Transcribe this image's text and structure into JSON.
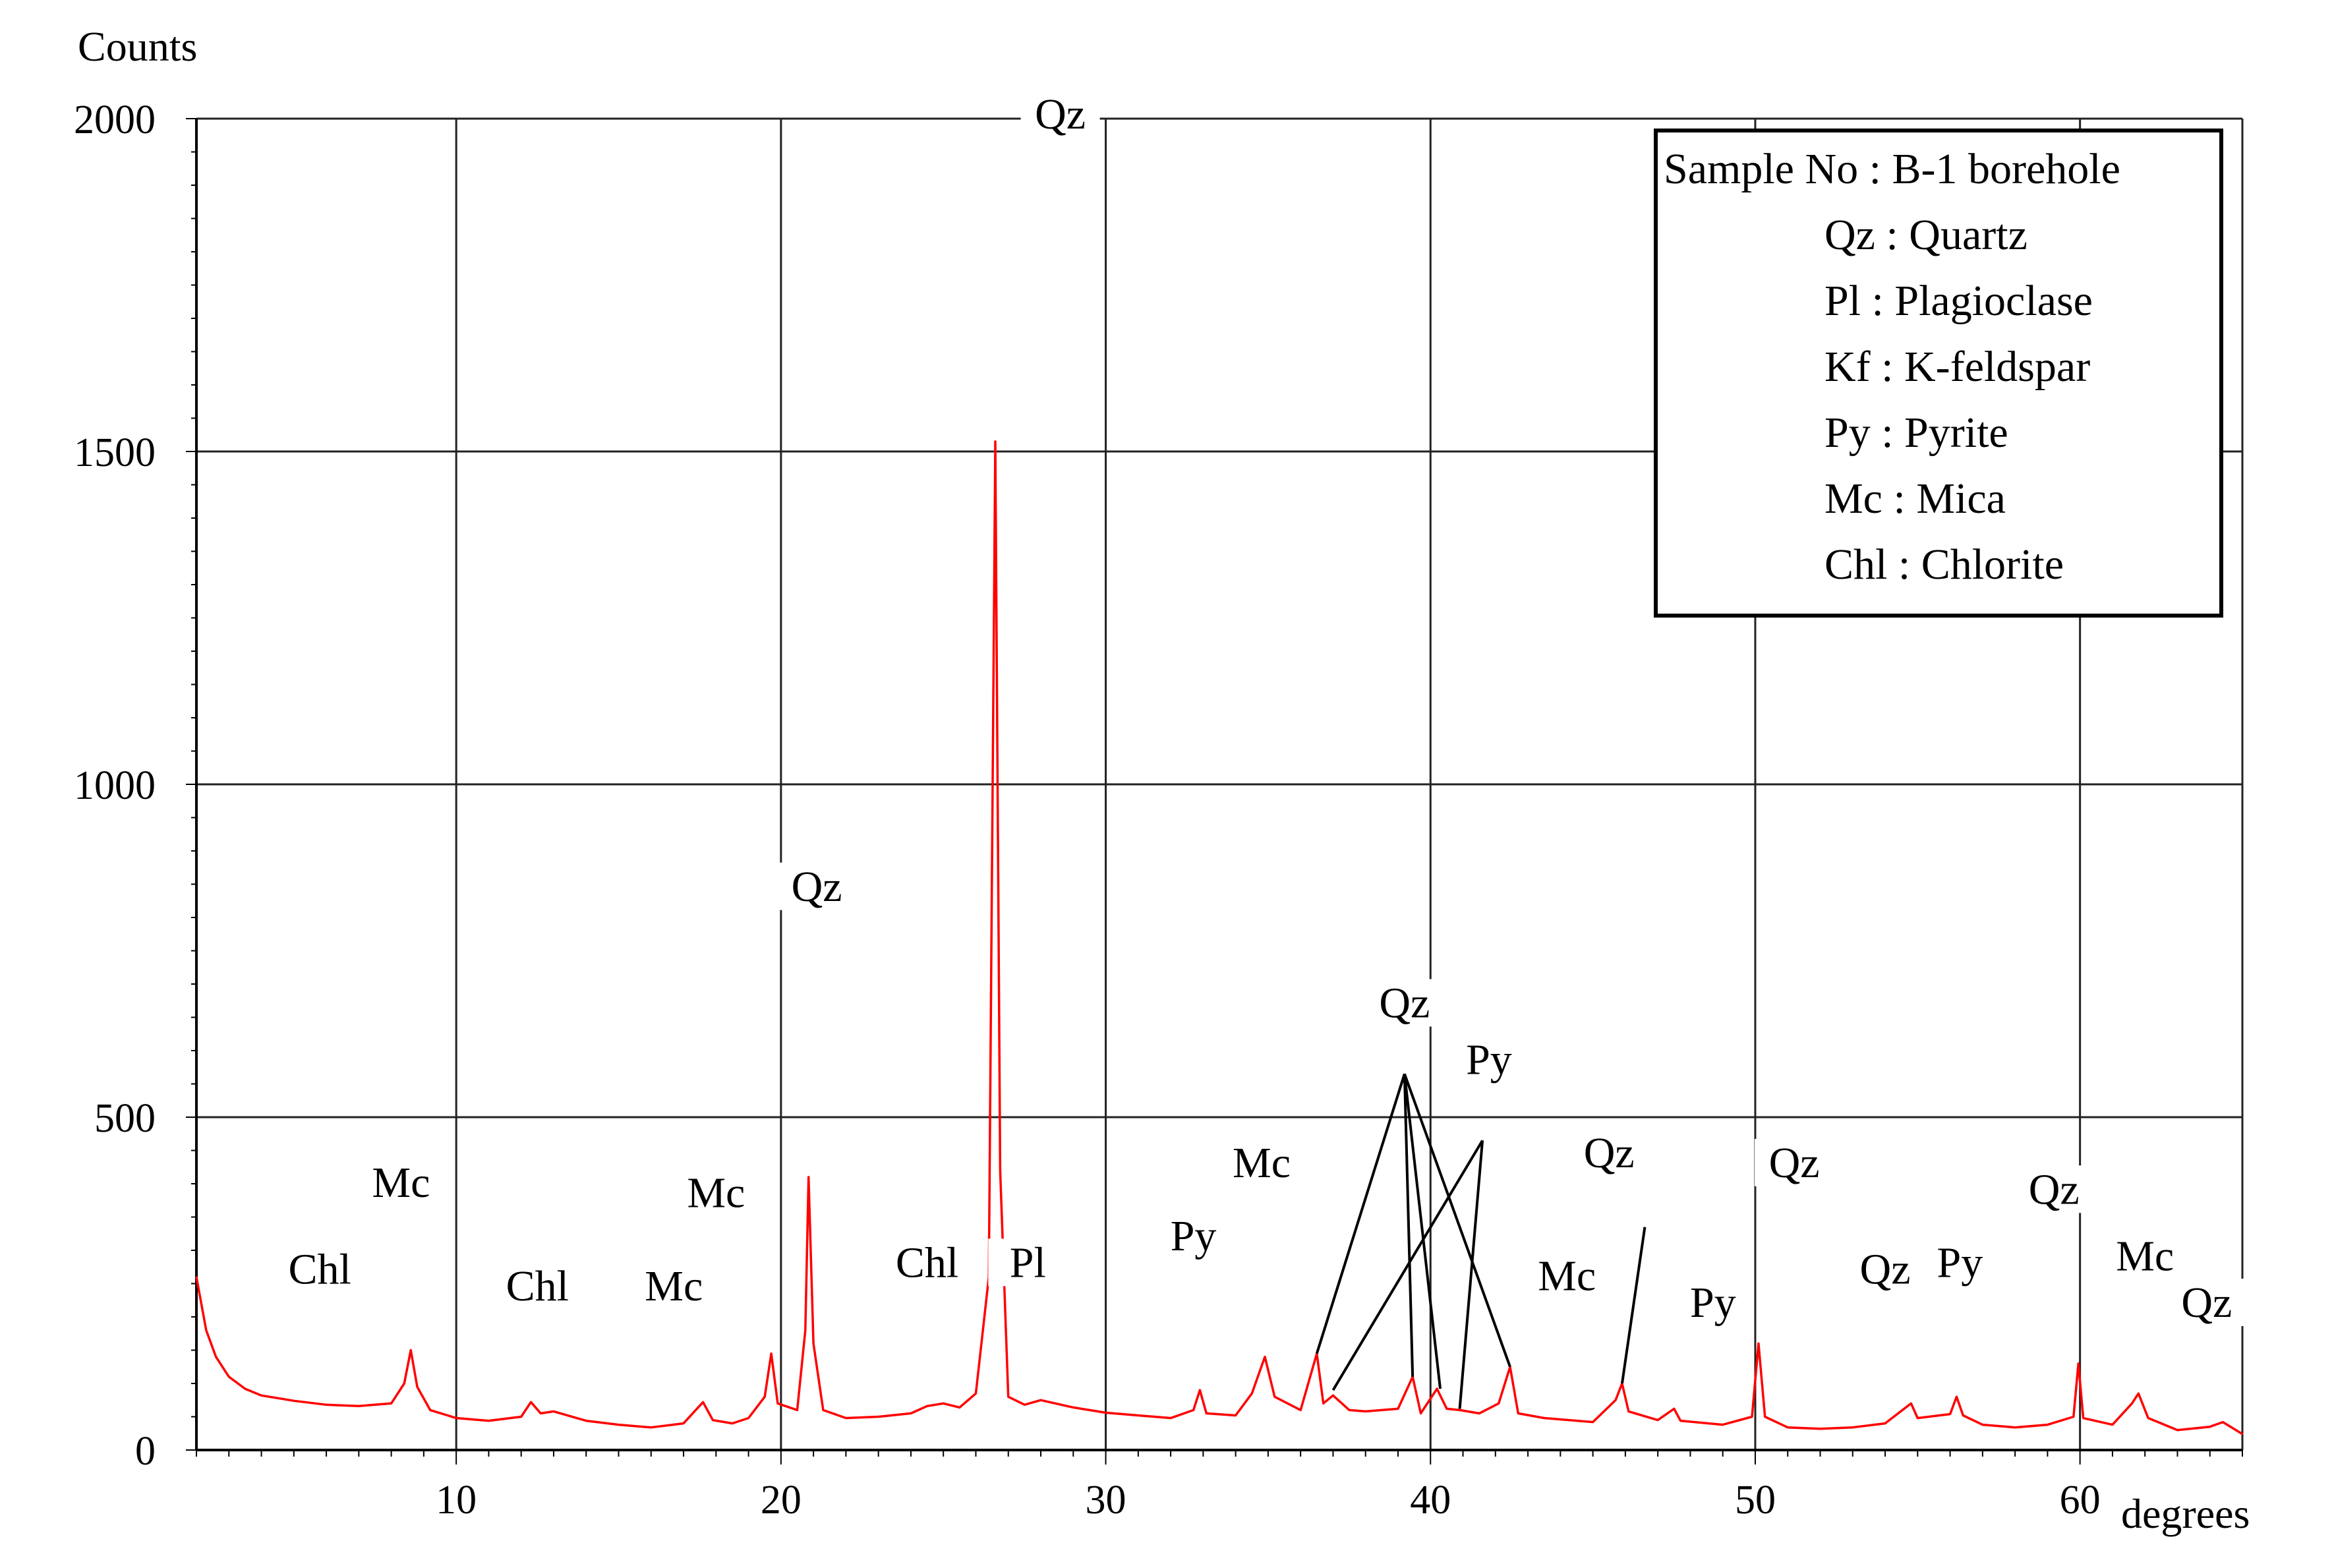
{
  "chart_data": {
    "type": "line",
    "title": "",
    "ylabel": "Counts",
    "xlabel": "degrees",
    "xlim": [
      2,
      65
    ],
    "ylim": [
      0,
      2000
    ],
    "x_ticks": [
      10,
      20,
      30,
      40,
      50,
      60
    ],
    "y_ticks": [
      0,
      500,
      1000,
      1500,
      2000
    ],
    "x_tick_labels": [
      "10",
      "20",
      "30",
      "40",
      "50",
      "60"
    ],
    "y_tick_labels": [
      "0",
      "500",
      "1000",
      "1500",
      "2000"
    ],
    "grid": true,
    "line_color": "#ff0000",
    "series": [
      {
        "name": "",
        "points": [
          [
            2.0,
            260
          ],
          [
            2.3,
            180
          ],
          [
            2.6,
            140
          ],
          [
            3.0,
            110
          ],
          [
            3.5,
            92
          ],
          [
            4.0,
            82
          ],
          [
            5.0,
            74
          ],
          [
            6.0,
            68
          ],
          [
            7.0,
            66
          ],
          [
            8.0,
            70
          ],
          [
            8.4,
            100
          ],
          [
            8.6,
            150
          ],
          [
            8.8,
            95
          ],
          [
            9.2,
            60
          ],
          [
            10.0,
            48
          ],
          [
            11.0,
            44
          ],
          [
            12.0,
            50
          ],
          [
            12.3,
            72
          ],
          [
            12.6,
            55
          ],
          [
            13.0,
            58
          ],
          [
            14.0,
            44
          ],
          [
            15.0,
            38
          ],
          [
            16.0,
            34
          ],
          [
            17.0,
            40
          ],
          [
            17.6,
            72
          ],
          [
            17.9,
            45
          ],
          [
            18.5,
            40
          ],
          [
            19.0,
            48
          ],
          [
            19.5,
            80
          ],
          [
            19.7,
            145
          ],
          [
            19.9,
            70
          ],
          [
            20.5,
            60
          ],
          [
            20.75,
            180
          ],
          [
            20.85,
            410
          ],
          [
            21.0,
            160
          ],
          [
            21.3,
            60
          ],
          [
            22.0,
            48
          ],
          [
            23.0,
            50
          ],
          [
            24.0,
            55
          ],
          [
            24.5,
            66
          ],
          [
            25.0,
            70
          ],
          [
            25.5,
            64
          ],
          [
            26.0,
            85
          ],
          [
            26.4,
            260
          ],
          [
            26.6,
            1515
          ],
          [
            26.75,
            420
          ],
          [
            27.0,
            80
          ],
          [
            27.5,
            68
          ],
          [
            28.0,
            75
          ],
          [
            29.0,
            64
          ],
          [
            30.0,
            56
          ],
          [
            31.0,
            52
          ],
          [
            32.0,
            48
          ],
          [
            32.7,
            60
          ],
          [
            32.9,
            90
          ],
          [
            33.1,
            55
          ],
          [
            34.0,
            52
          ],
          [
            34.5,
            85
          ],
          [
            34.9,
            140
          ],
          [
            35.2,
            80
          ],
          [
            36.0,
            60
          ],
          [
            36.5,
            145
          ],
          [
            36.7,
            70
          ],
          [
            37.0,
            82
          ],
          [
            37.5,
            60
          ],
          [
            38.0,
            58
          ],
          [
            39.0,
            62
          ],
          [
            39.45,
            110
          ],
          [
            39.7,
            55
          ],
          [
            40.2,
            92
          ],
          [
            40.5,
            62
          ],
          [
            40.9,
            60
          ],
          [
            41.5,
            55
          ],
          [
            42.1,
            70
          ],
          [
            42.45,
            125
          ],
          [
            42.7,
            55
          ],
          [
            43.5,
            48
          ],
          [
            45.0,
            42
          ],
          [
            45.7,
            75
          ],
          [
            45.9,
            100
          ],
          [
            46.1,
            58
          ],
          [
            47.0,
            45
          ],
          [
            47.5,
            62
          ],
          [
            47.7,
            44
          ],
          [
            49.0,
            38
          ],
          [
            49.9,
            50
          ],
          [
            50.1,
            160
          ],
          [
            50.3,
            50
          ],
          [
            51.0,
            34
          ],
          [
            52.0,
            32
          ],
          [
            53.0,
            34
          ],
          [
            54.0,
            40
          ],
          [
            54.8,
            70
          ],
          [
            55.0,
            48
          ],
          [
            56.0,
            54
          ],
          [
            56.2,
            80
          ],
          [
            56.4,
            52
          ],
          [
            57.0,
            38
          ],
          [
            58.0,
            34
          ],
          [
            59.0,
            38
          ],
          [
            59.8,
            50
          ],
          [
            59.95,
            130
          ],
          [
            60.1,
            48
          ],
          [
            61.0,
            38
          ],
          [
            61.6,
            70
          ],
          [
            61.8,
            85
          ],
          [
            62.1,
            48
          ],
          [
            63.0,
            30
          ],
          [
            64.0,
            35
          ],
          [
            64.4,
            42
          ],
          [
            65.0,
            24
          ]
        ]
      }
    ],
    "annotations": [
      {
        "text": "Chl",
        "x": 5.8,
        "y": 250
      },
      {
        "text": "Mc",
        "x": 8.3,
        "y": 380
      },
      {
        "text": "Chl",
        "x": 12.5,
        "y": 225
      },
      {
        "text": "Mc",
        "x": 16.7,
        "y": 225
      },
      {
        "text": "Mc",
        "x": 18.0,
        "y": 365
      },
      {
        "text": "Qz",
        "x": 21.1,
        "y": 825
      },
      {
        "text": "Chl",
        "x": 24.5,
        "y": 260
      },
      {
        "text": "Qz",
        "x": 28.6,
        "y": 1985
      },
      {
        "text": "Pl",
        "x": 27.6,
        "y": 260
      },
      {
        "text": "Py",
        "x": 32.7,
        "y": 300
      },
      {
        "text": "Mc",
        "x": 34.8,
        "y": 410
      },
      {
        "text": "Qz",
        "x": 39.2,
        "y": 650
      },
      {
        "text": "Py",
        "x": 41.8,
        "y": 565
      },
      {
        "text": "Mc",
        "x": 44.2,
        "y": 240
      },
      {
        "text": "Qz",
        "x": 45.5,
        "y": 425
      },
      {
        "text": "Py",
        "x": 48.7,
        "y": 200
      },
      {
        "text": "Qz",
        "x": 51.2,
        "y": 410
      },
      {
        "text": "Qz",
        "x": 54.0,
        "y": 250
      },
      {
        "text": "Py",
        "x": 56.3,
        "y": 260
      },
      {
        "text": "Qz",
        "x": 59.2,
        "y": 370
      },
      {
        "text": "Mc",
        "x": 62.0,
        "y": 270
      },
      {
        "text": "Qz",
        "x": 63.9,
        "y": 200
      }
    ],
    "leader_lines": [
      {
        "from": [
          39.2,
          565
        ],
        "to": [
          36.5,
          145
        ]
      },
      {
        "from": [
          39.2,
          565
        ],
        "to": [
          39.45,
          110
        ]
      },
      {
        "from": [
          39.2,
          565
        ],
        "to": [
          40.3,
          92
        ]
      },
      {
        "from": [
          39.2,
          565
        ],
        "to": [
          42.45,
          125
        ]
      },
      {
        "from": [
          41.6,
          465
        ],
        "to": [
          37.0,
          90
        ]
      },
      {
        "from": [
          41.6,
          465
        ],
        "to": [
          40.9,
          62
        ]
      },
      {
        "from": [
          46.6,
          335
        ],
        "to": [
          45.9,
          100
        ]
      }
    ],
    "legend": {
      "position": "top-right",
      "header": "Sample No : B-1 borehole",
      "entries": [
        "Qz : Quartz",
        "Pl : Plagioclase",
        "Kf : K-feldspar",
        "Py : Pyrite",
        "Mc : Mica",
        "Chl : Chlorite"
      ]
    }
  }
}
